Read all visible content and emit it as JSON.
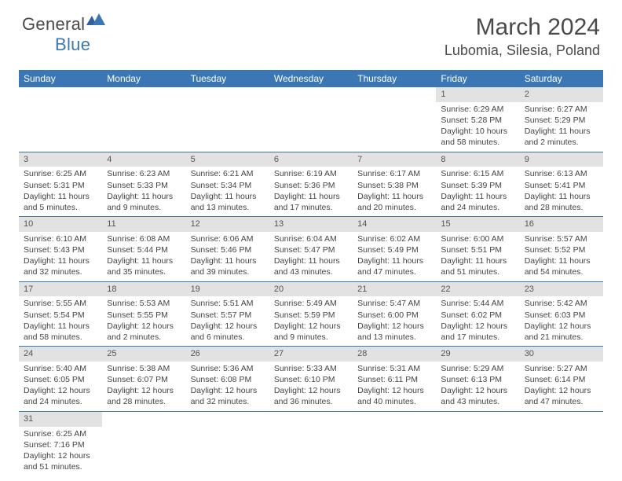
{
  "logo": {
    "general": "General",
    "blue": "Blue"
  },
  "title": "March 2024",
  "location": "Lubomia, Silesia, Poland",
  "style": {
    "accent_color": "#3b76b5",
    "header_text_color": "#ffffff",
    "daynum_bg": "#e2e2e2",
    "body_bg": "#ffffff",
    "text_color": "#444444",
    "row_border_color": "#3b76b5",
    "month_fontsize": 30,
    "location_fontsize": 18,
    "weekday_fontsize": 12,
    "cell_fontsize": 10.5
  },
  "weekdays": [
    "Sunday",
    "Monday",
    "Tuesday",
    "Wednesday",
    "Thursday",
    "Friday",
    "Saturday"
  ],
  "weeks": [
    [
      {
        "blank": true
      },
      {
        "blank": true
      },
      {
        "blank": true
      },
      {
        "blank": true
      },
      {
        "blank": true
      },
      {
        "day": "1",
        "sunrise": "Sunrise: 6:29 AM",
        "sunset": "Sunset: 5:28 PM",
        "daylight": "Daylight: 10 hours and 58 minutes."
      },
      {
        "day": "2",
        "sunrise": "Sunrise: 6:27 AM",
        "sunset": "Sunset: 5:29 PM",
        "daylight": "Daylight: 11 hours and 2 minutes."
      }
    ],
    [
      {
        "day": "3",
        "sunrise": "Sunrise: 6:25 AM",
        "sunset": "Sunset: 5:31 PM",
        "daylight": "Daylight: 11 hours and 5 minutes."
      },
      {
        "day": "4",
        "sunrise": "Sunrise: 6:23 AM",
        "sunset": "Sunset: 5:33 PM",
        "daylight": "Daylight: 11 hours and 9 minutes."
      },
      {
        "day": "5",
        "sunrise": "Sunrise: 6:21 AM",
        "sunset": "Sunset: 5:34 PM",
        "daylight": "Daylight: 11 hours and 13 minutes."
      },
      {
        "day": "6",
        "sunrise": "Sunrise: 6:19 AM",
        "sunset": "Sunset: 5:36 PM",
        "daylight": "Daylight: 11 hours and 17 minutes."
      },
      {
        "day": "7",
        "sunrise": "Sunrise: 6:17 AM",
        "sunset": "Sunset: 5:38 PM",
        "daylight": "Daylight: 11 hours and 20 minutes."
      },
      {
        "day": "8",
        "sunrise": "Sunrise: 6:15 AM",
        "sunset": "Sunset: 5:39 PM",
        "daylight": "Daylight: 11 hours and 24 minutes."
      },
      {
        "day": "9",
        "sunrise": "Sunrise: 6:13 AM",
        "sunset": "Sunset: 5:41 PM",
        "daylight": "Daylight: 11 hours and 28 minutes."
      }
    ],
    [
      {
        "day": "10",
        "sunrise": "Sunrise: 6:10 AM",
        "sunset": "Sunset: 5:43 PM",
        "daylight": "Daylight: 11 hours and 32 minutes."
      },
      {
        "day": "11",
        "sunrise": "Sunrise: 6:08 AM",
        "sunset": "Sunset: 5:44 PM",
        "daylight": "Daylight: 11 hours and 35 minutes."
      },
      {
        "day": "12",
        "sunrise": "Sunrise: 6:06 AM",
        "sunset": "Sunset: 5:46 PM",
        "daylight": "Daylight: 11 hours and 39 minutes."
      },
      {
        "day": "13",
        "sunrise": "Sunrise: 6:04 AM",
        "sunset": "Sunset: 5:47 PM",
        "daylight": "Daylight: 11 hours and 43 minutes."
      },
      {
        "day": "14",
        "sunrise": "Sunrise: 6:02 AM",
        "sunset": "Sunset: 5:49 PM",
        "daylight": "Daylight: 11 hours and 47 minutes."
      },
      {
        "day": "15",
        "sunrise": "Sunrise: 6:00 AM",
        "sunset": "Sunset: 5:51 PM",
        "daylight": "Daylight: 11 hours and 51 minutes."
      },
      {
        "day": "16",
        "sunrise": "Sunrise: 5:57 AM",
        "sunset": "Sunset: 5:52 PM",
        "daylight": "Daylight: 11 hours and 54 minutes."
      }
    ],
    [
      {
        "day": "17",
        "sunrise": "Sunrise: 5:55 AM",
        "sunset": "Sunset: 5:54 PM",
        "daylight": "Daylight: 11 hours and 58 minutes."
      },
      {
        "day": "18",
        "sunrise": "Sunrise: 5:53 AM",
        "sunset": "Sunset: 5:55 PM",
        "daylight": "Daylight: 12 hours and 2 minutes."
      },
      {
        "day": "19",
        "sunrise": "Sunrise: 5:51 AM",
        "sunset": "Sunset: 5:57 PM",
        "daylight": "Daylight: 12 hours and 6 minutes."
      },
      {
        "day": "20",
        "sunrise": "Sunrise: 5:49 AM",
        "sunset": "Sunset: 5:59 PM",
        "daylight": "Daylight: 12 hours and 9 minutes."
      },
      {
        "day": "21",
        "sunrise": "Sunrise: 5:47 AM",
        "sunset": "Sunset: 6:00 PM",
        "daylight": "Daylight: 12 hours and 13 minutes."
      },
      {
        "day": "22",
        "sunrise": "Sunrise: 5:44 AM",
        "sunset": "Sunset: 6:02 PM",
        "daylight": "Daylight: 12 hours and 17 minutes."
      },
      {
        "day": "23",
        "sunrise": "Sunrise: 5:42 AM",
        "sunset": "Sunset: 6:03 PM",
        "daylight": "Daylight: 12 hours and 21 minutes."
      }
    ],
    [
      {
        "day": "24",
        "sunrise": "Sunrise: 5:40 AM",
        "sunset": "Sunset: 6:05 PM",
        "daylight": "Daylight: 12 hours and 24 minutes."
      },
      {
        "day": "25",
        "sunrise": "Sunrise: 5:38 AM",
        "sunset": "Sunset: 6:07 PM",
        "daylight": "Daylight: 12 hours and 28 minutes."
      },
      {
        "day": "26",
        "sunrise": "Sunrise: 5:36 AM",
        "sunset": "Sunset: 6:08 PM",
        "daylight": "Daylight: 12 hours and 32 minutes."
      },
      {
        "day": "27",
        "sunrise": "Sunrise: 5:33 AM",
        "sunset": "Sunset: 6:10 PM",
        "daylight": "Daylight: 12 hours and 36 minutes."
      },
      {
        "day": "28",
        "sunrise": "Sunrise: 5:31 AM",
        "sunset": "Sunset: 6:11 PM",
        "daylight": "Daylight: 12 hours and 40 minutes."
      },
      {
        "day": "29",
        "sunrise": "Sunrise: 5:29 AM",
        "sunset": "Sunset: 6:13 PM",
        "daylight": "Daylight: 12 hours and 43 minutes."
      },
      {
        "day": "30",
        "sunrise": "Sunrise: 5:27 AM",
        "sunset": "Sunset: 6:14 PM",
        "daylight": "Daylight: 12 hours and 47 minutes."
      }
    ],
    [
      {
        "day": "31",
        "sunrise": "Sunrise: 6:25 AM",
        "sunset": "Sunset: 7:16 PM",
        "daylight": "Daylight: 12 hours and 51 minutes."
      },
      {
        "blank": true
      },
      {
        "blank": true
      },
      {
        "blank": true
      },
      {
        "blank": true
      },
      {
        "blank": true
      },
      {
        "blank": true
      }
    ]
  ]
}
